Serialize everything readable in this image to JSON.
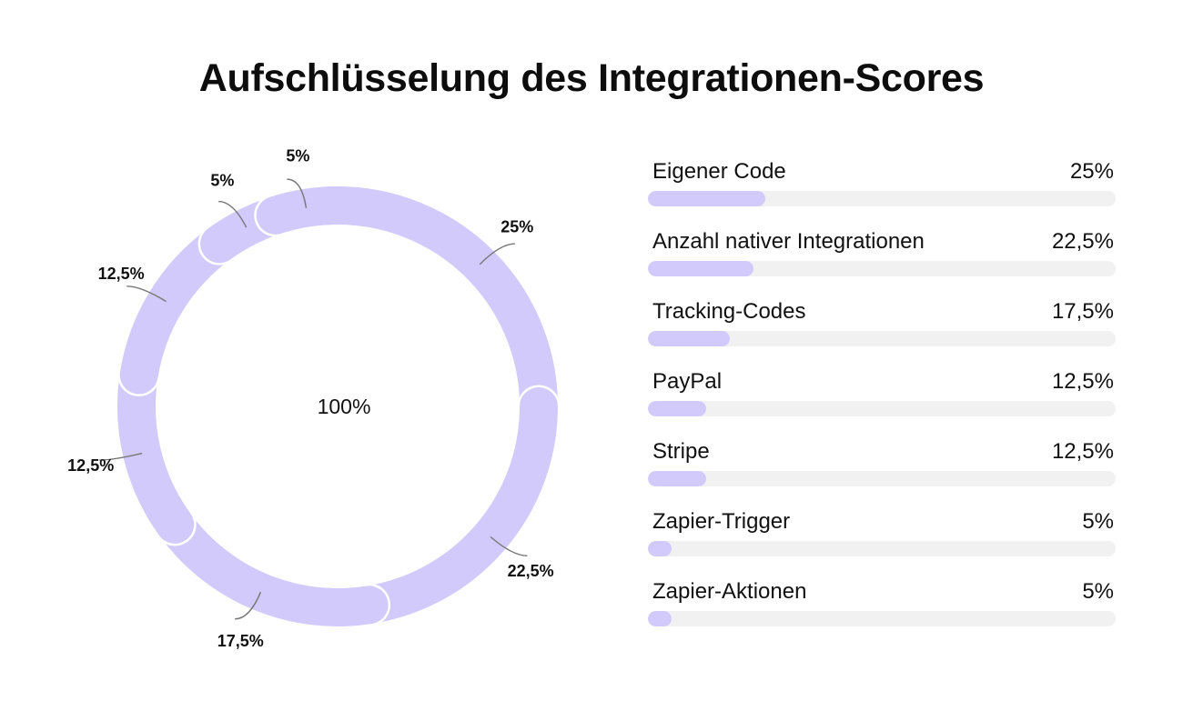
{
  "title": "Aufschlüsselung des Integrationen-Scores",
  "colors": {
    "accent": "#d3cafc",
    "track": "#f1f1f1",
    "leader": "#777777",
    "text": "#111111"
  },
  "chart_data": [
    {
      "type": "pie",
      "variant": "donut",
      "center_label": "100%",
      "labels": [
        "Eigener Code",
        "Anzahl nativer Integrationen",
        "Tracking-Codes",
        "PayPal",
        "Stripe",
        "Zapier-Trigger",
        "Zapier-Aktionen"
      ],
      "values": [
        25,
        22.5,
        17.5,
        12.5,
        12.5,
        5,
        5
      ],
      "value_labels": [
        "25%",
        "22,5%",
        "17,5%",
        "12,5%",
        "12,5%",
        "5%",
        "5%"
      ],
      "start": "top, clockwise",
      "legend": "none"
    },
    {
      "type": "bar",
      "orientation": "horizontal",
      "categories": [
        "Eigener Code",
        "Anzahl nativer Integrationen",
        "Tracking-Codes",
        "PayPal",
        "Stripe",
        "Zapier-Trigger",
        "Zapier-Aktionen"
      ],
      "values": [
        25,
        22.5,
        17.5,
        12.5,
        12.5,
        5,
        5
      ],
      "value_labels": [
        "25%",
        "22,5%",
        "17,5%",
        "12,5%",
        "12,5%",
        "5%",
        "5%"
      ],
      "xlim": [
        0,
        100
      ]
    }
  ]
}
